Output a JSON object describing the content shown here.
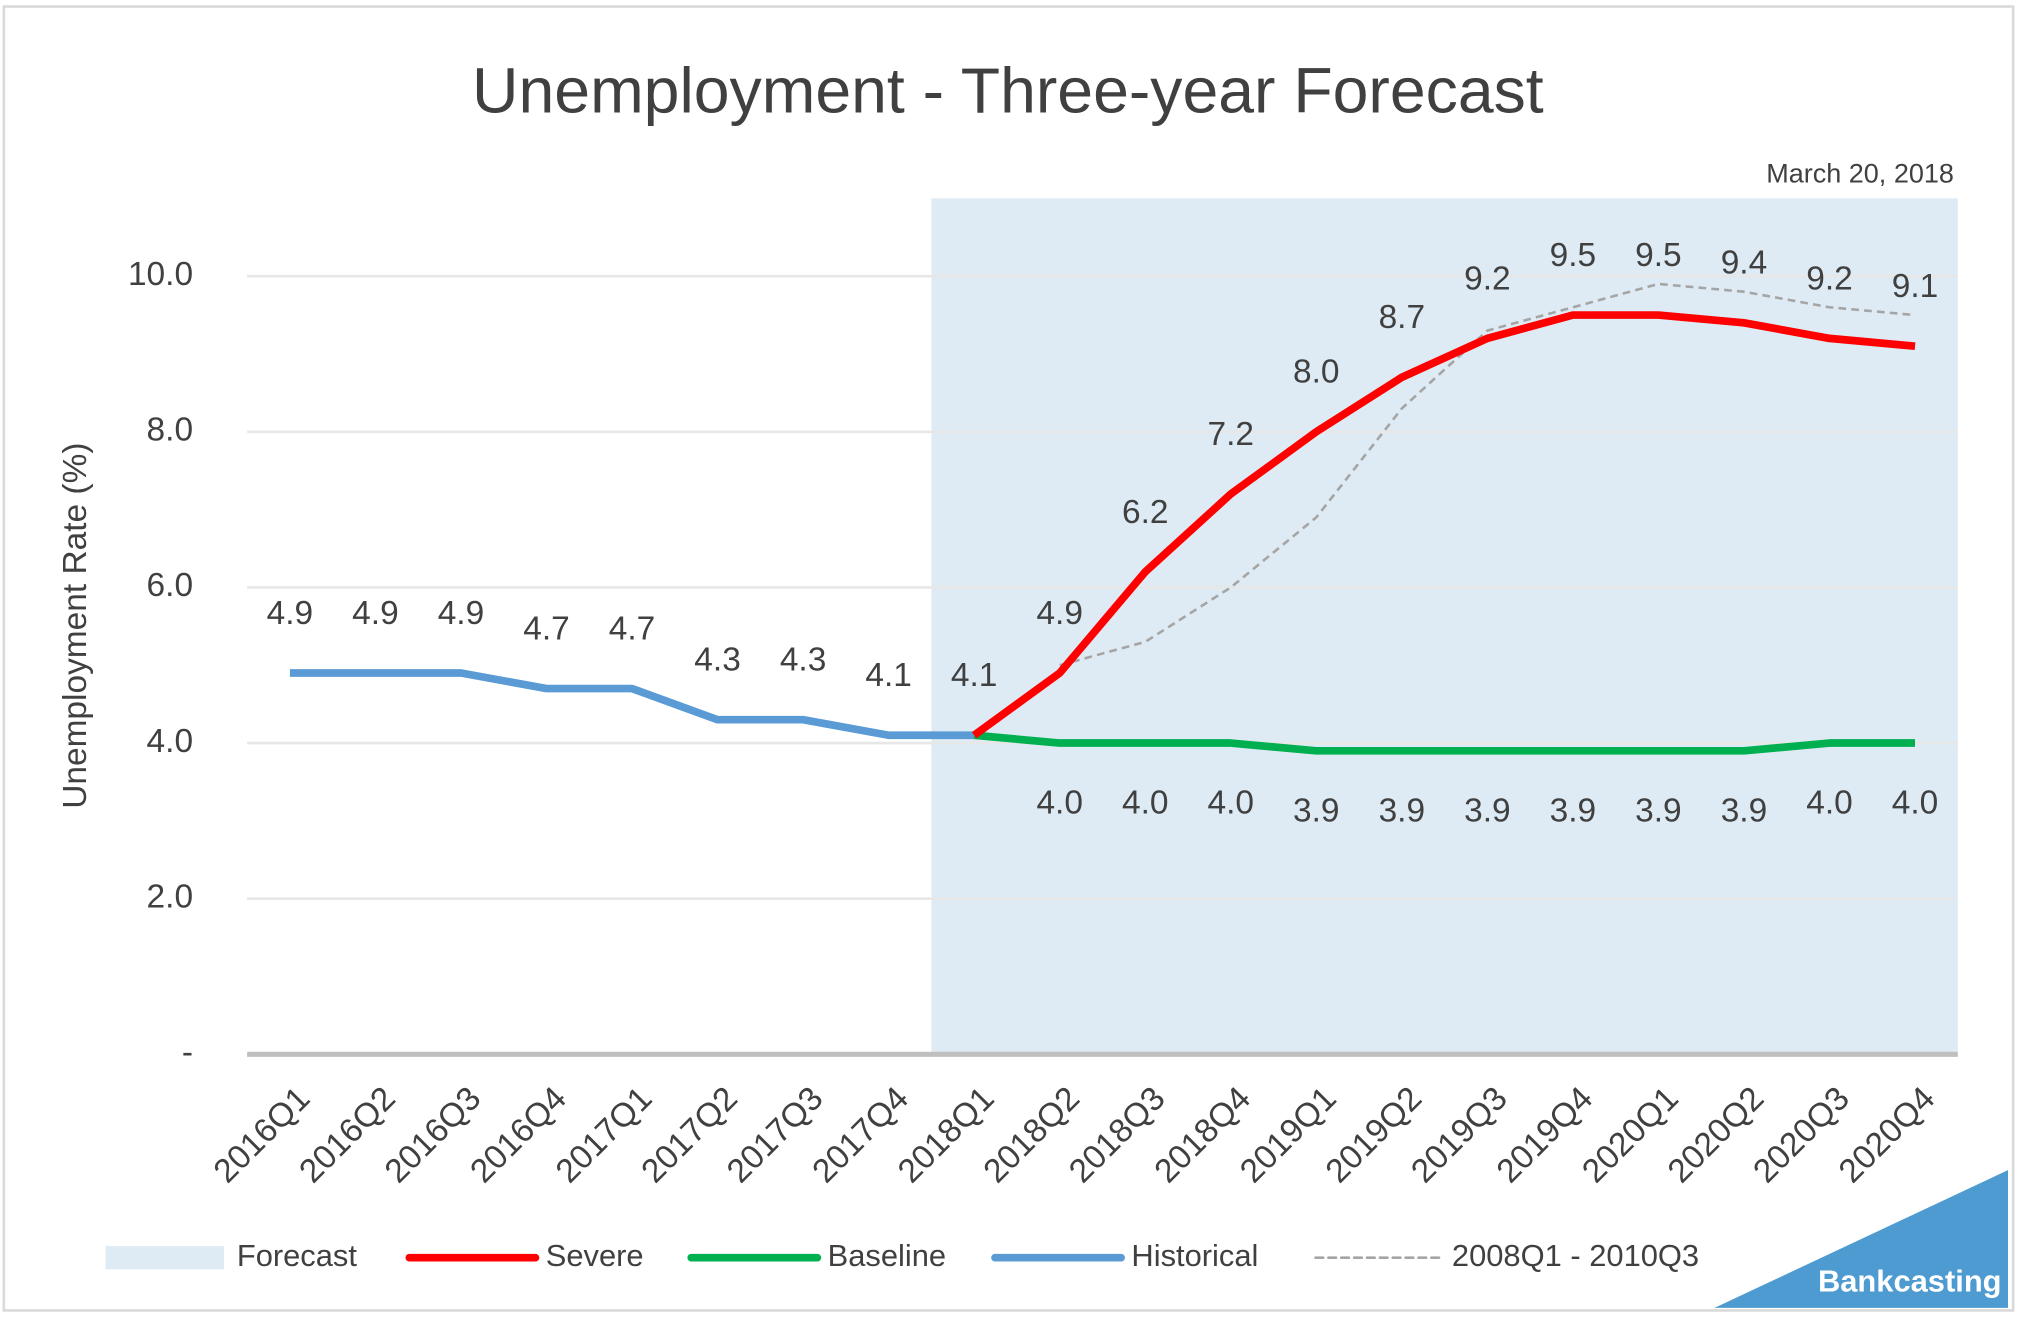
{
  "chart_data": {
    "type": "line",
    "title": "Unemployment - Three-year Forecast",
    "annotation": "March 20, 2018",
    "watermark": "Bankcasting",
    "y_label": "Unemployment Rate (%)",
    "categories": [
      "2016Q1",
      "2016Q2",
      "2016Q3",
      "2016Q4",
      "2017Q1",
      "2017Q2",
      "2017Q3",
      "2017Q4",
      "2018Q1",
      "2018Q2",
      "2018Q3",
      "2018Q4",
      "2019Q1",
      "2019Q2",
      "2019Q3",
      "2019Q4",
      "2020Q1",
      "2020Q2",
      "2020Q3",
      "2020Q4"
    ],
    "shaded_region": {
      "name": "Forecast",
      "color": "#deebf4",
      "from": "2018Q1"
    },
    "series": [
      {
        "name": "Severe",
        "color": "#ff0000",
        "width": 6,
        "dashed": false,
        "label_position": "above",
        "values": [
          null,
          null,
          null,
          null,
          null,
          null,
          null,
          null,
          4.1,
          4.9,
          6.2,
          7.2,
          8.0,
          8.7,
          9.2,
          9.5,
          9.5,
          9.4,
          9.2,
          9.1
        ],
        "value_labels": [
          null,
          null,
          null,
          null,
          null,
          null,
          null,
          null,
          null,
          "4.9",
          "6.2",
          "7.2",
          "8.0",
          "8.7",
          "9.2",
          "9.5",
          "9.5",
          "9.4",
          "9.2",
          "9.1"
        ]
      },
      {
        "name": "Baseline",
        "color": "#00b050",
        "width": 6,
        "dashed": false,
        "label_position": "below",
        "values": [
          null,
          null,
          null,
          null,
          null,
          null,
          null,
          null,
          4.1,
          4.0,
          4.0,
          4.0,
          3.9,
          3.9,
          3.9,
          3.9,
          3.9,
          3.9,
          4.0,
          4.0
        ],
        "value_labels": [
          null,
          null,
          null,
          null,
          null,
          null,
          null,
          null,
          null,
          "4.0",
          "4.0",
          "4.0",
          "3.9",
          "3.9",
          "3.9",
          "3.9",
          "3.9",
          "3.9",
          "4.0",
          "4.0"
        ]
      },
      {
        "name": "Historical",
        "color": "#5b9bd5",
        "width": 6,
        "dashed": false,
        "label_position": "above",
        "values": [
          4.9,
          4.9,
          4.9,
          4.7,
          4.7,
          4.3,
          4.3,
          4.1,
          4.1,
          null,
          null,
          null,
          null,
          null,
          null,
          null,
          null,
          null,
          null,
          null
        ],
        "value_labels": [
          "4.9",
          "4.9",
          "4.9",
          "4.7",
          "4.7",
          "4.3",
          "4.3",
          "4.1",
          "4.1",
          null,
          null,
          null,
          null,
          null,
          null,
          null,
          null,
          null,
          null,
          null
        ]
      },
      {
        "name": "2008Q1 - 2010Q3",
        "color": "#a5a5a5",
        "width": 2,
        "dashed": true,
        "label_position": "none",
        "values": [
          null,
          null,
          null,
          null,
          null,
          null,
          null,
          null,
          null,
          5.0,
          5.3,
          6.0,
          6.9,
          8.3,
          9.3,
          9.6,
          9.9,
          9.8,
          9.6,
          9.5
        ]
      }
    ],
    "ylim": [
      0,
      11
    ],
    "yticks": [
      {
        "value": 0,
        "label": "-"
      },
      {
        "value": 2,
        "label": "2.0"
      },
      {
        "value": 4,
        "label": "4.0"
      },
      {
        "value": 6,
        "label": "6.0"
      },
      {
        "value": 8,
        "label": "8.0"
      },
      {
        "value": 10,
        "label": "10.0"
      }
    ],
    "grid": true
  }
}
